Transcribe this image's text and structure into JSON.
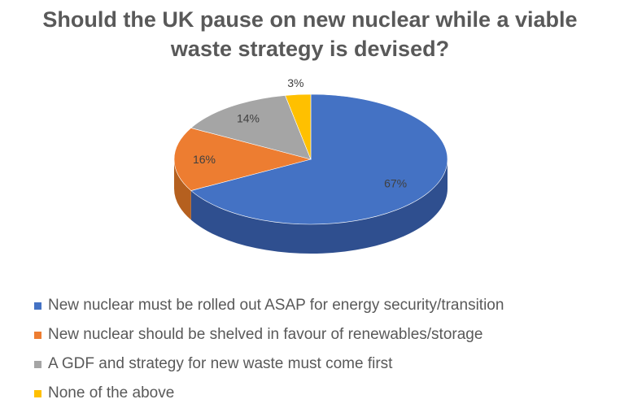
{
  "chart_data": {
    "type": "pie",
    "title": "Should the UK pause on new nuclear while a viable waste strategy is devised?",
    "title_lines": [
      "Should the UK pause on new nuclear while a viable",
      "waste strategy is devised?"
    ],
    "categories": [
      "New nuclear must be rolled out ASAP for energy security/transition",
      "New nuclear should be shelved in favour of renewables/storage",
      "A GDF and strategy for new waste must come first",
      "None of the above"
    ],
    "values": [
      67,
      16,
      14,
      3
    ],
    "data_labels": [
      "67%",
      "16%",
      "14%",
      "3%"
    ],
    "colors": [
      "#4472C4",
      "#ED7D31",
      "#A5A5A5",
      "#FFC000"
    ],
    "side_colors": [
      "#2F4F8F",
      "#B5601F",
      "#7E7E7E",
      "#C99400"
    ],
    "style": "3d-pie",
    "legend_position": "bottom"
  }
}
